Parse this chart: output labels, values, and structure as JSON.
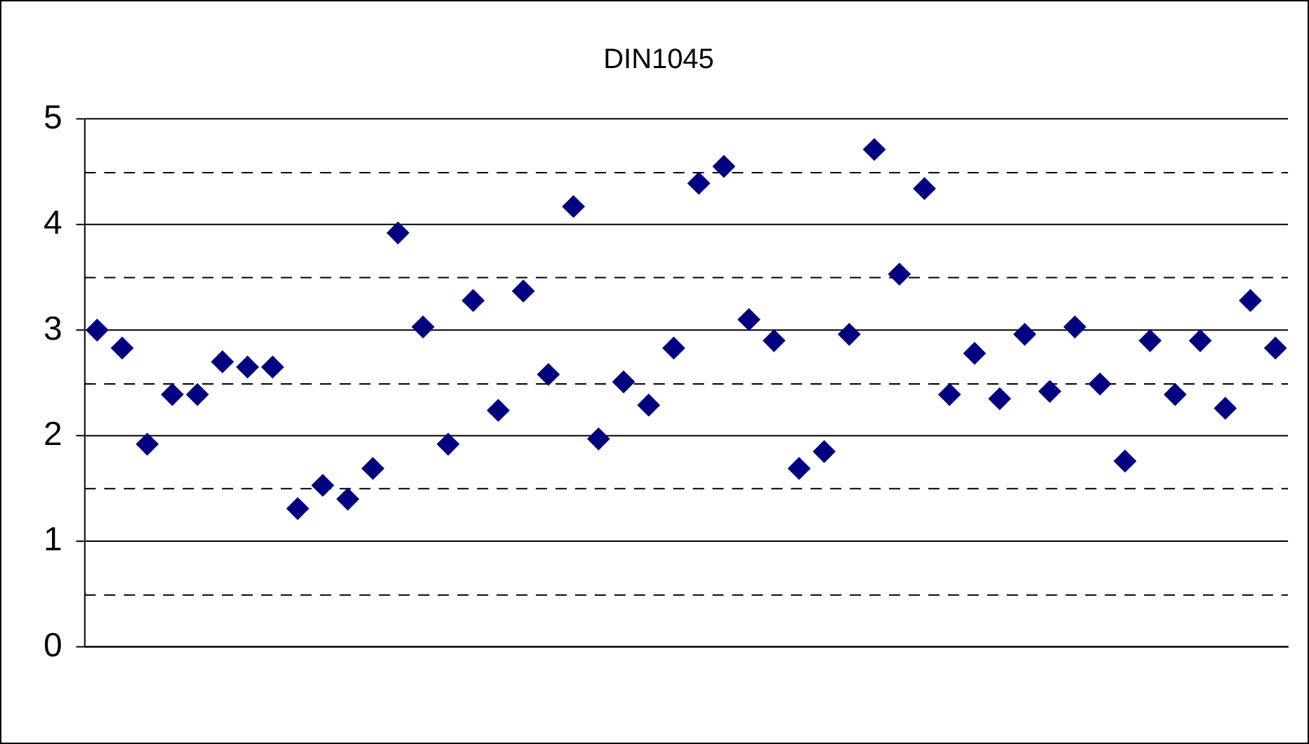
{
  "chart_data": {
    "type": "scatter",
    "title": "DIN1045",
    "marker": "diamond",
    "grid": "y",
    "categories": [
      null,
      null,
      null,
      null,
      null,
      null,
      null,
      null,
      null,
      null,
      null,
      null,
      null,
      null,
      null,
      null,
      null,
      null,
      null,
      null,
      null,
      null,
      null,
      null,
      null,
      null,
      null,
      null,
      null,
      null,
      null,
      null,
      null,
      null,
      null,
      null,
      null,
      null,
      null,
      null,
      null,
      null,
      null,
      null,
      null,
      null,
      null,
      null
    ],
    "series": [
      {
        "color": "#000080",
        "values": [
          3.0,
          2.83,
          1.92,
          2.39,
          2.39,
          2.7,
          2.65,
          2.65,
          1.31,
          1.53,
          1.4,
          1.69,
          3.92,
          3.03,
          1.92,
          3.28,
          2.24,
          3.37,
          2.58,
          4.17,
          1.97,
          2.51,
          2.29,
          2.83,
          4.39,
          4.55,
          3.1,
          2.9,
          1.69,
          1.85,
          2.96,
          4.71,
          3.53,
          4.34,
          2.39,
          2.78,
          2.35,
          2.96,
          2.42,
          3.03,
          2.49,
          1.76,
          2.9,
          2.39,
          2.9,
          2.26,
          3.28,
          2.83
        ]
      }
    ],
    "ylim": [
      0,
      5
    ],
    "yticks": [
      0,
      {
        "value": 0.5,
        "label": null
      },
      1,
      {
        "value": 1.5,
        "label": null
      },
      2,
      {
        "value": 2.5,
        "label": null
      },
      3,
      {
        "value": 3.5,
        "label": null
      },
      4,
      {
        "value": 4.5,
        "label": null
      },
      5
    ]
  }
}
